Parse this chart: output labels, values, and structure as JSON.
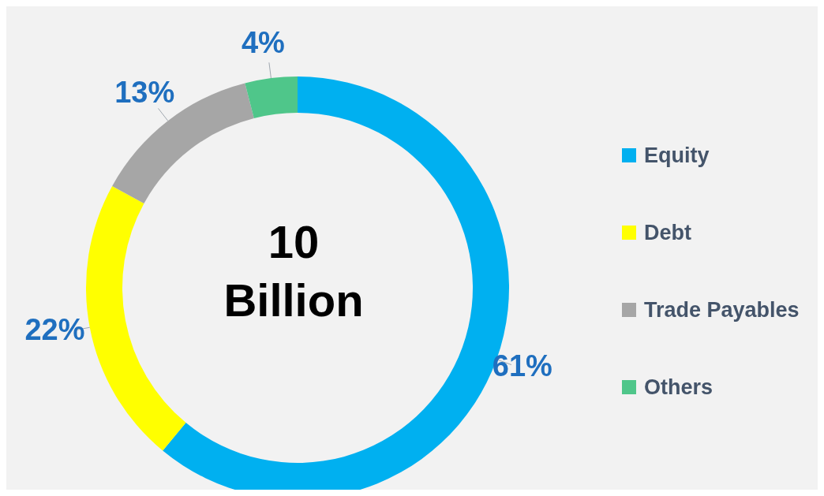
{
  "chart_data": {
    "type": "donut",
    "categories": [
      "Equity",
      "Debt",
      "Trade Payables",
      "Others"
    ],
    "values": [
      61,
      22,
      13,
      4
    ],
    "colors": [
      "#00b0f0",
      "#ffff00",
      "#a6a6a6",
      "#4fc68a"
    ],
    "value_labels": [
      "61%",
      "22%",
      "13%",
      "4%"
    ],
    "annotations": [
      "10 Billion"
    ],
    "legend": "right"
  }
}
